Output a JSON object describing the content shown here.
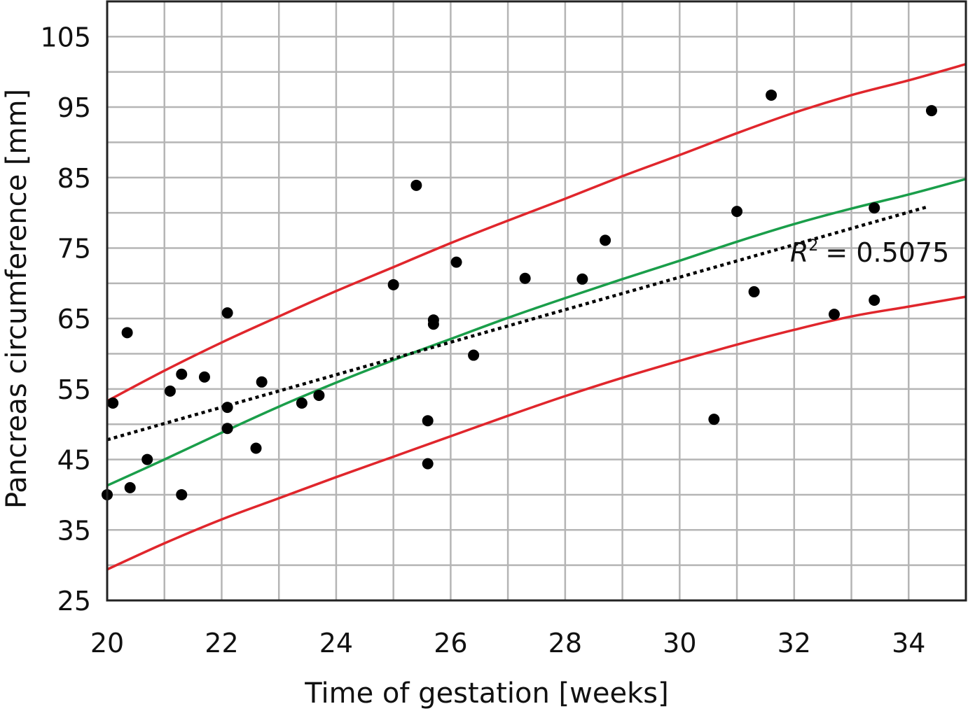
{
  "chart_data": {
    "type": "scatter",
    "xlabel": "Time of gestation [weeks]",
    "ylabel": "Pancreas circumference [mm]",
    "xlim": [
      20,
      35
    ],
    "ylim": [
      25,
      110
    ],
    "x_ticks": [
      20,
      22,
      24,
      26,
      28,
      30,
      32,
      34
    ],
    "y_ticks": [
      25,
      35,
      45,
      55,
      65,
      75,
      85,
      95,
      105
    ],
    "x_grid_step": 1,
    "y_grid_step": 5,
    "grid": true,
    "annotation": {
      "r_label": "R",
      "r_superscript": "2",
      "r_value_text": "= 0.5075",
      "position": "right"
    },
    "colors": {
      "points": "#000000",
      "mean_curve": "#1a9e4a",
      "bound_curves": "#e0262c",
      "trendline": "#000000",
      "grid": "#b5b5b5"
    },
    "points": [
      {
        "x": 20.0,
        "y": 40.0
      },
      {
        "x": 20.1,
        "y": 53.0
      },
      {
        "x": 20.35,
        "y": 63.0
      },
      {
        "x": 20.4,
        "y": 41.0
      },
      {
        "x": 20.7,
        "y": 45.0
      },
      {
        "x": 21.1,
        "y": 54.7
      },
      {
        "x": 21.3,
        "y": 57.1
      },
      {
        "x": 21.3,
        "y": 40.0
      },
      {
        "x": 21.7,
        "y": 56.7
      },
      {
        "x": 22.1,
        "y": 65.8
      },
      {
        "x": 22.1,
        "y": 52.4
      },
      {
        "x": 22.1,
        "y": 49.4
      },
      {
        "x": 22.6,
        "y": 46.6
      },
      {
        "x": 22.7,
        "y": 56.0
      },
      {
        "x": 23.4,
        "y": 53.0
      },
      {
        "x": 23.7,
        "y": 54.1
      },
      {
        "x": 25.0,
        "y": 69.8
      },
      {
        "x": 25.4,
        "y": 83.9
      },
      {
        "x": 25.6,
        "y": 50.5
      },
      {
        "x": 25.6,
        "y": 44.4
      },
      {
        "x": 25.7,
        "y": 64.8
      },
      {
        "x": 25.7,
        "y": 64.2
      },
      {
        "x": 26.1,
        "y": 73.0
      },
      {
        "x": 26.4,
        "y": 59.8
      },
      {
        "x": 27.3,
        "y": 70.7
      },
      {
        "x": 28.3,
        "y": 70.6
      },
      {
        "x": 28.7,
        "y": 76.1
      },
      {
        "x": 30.6,
        "y": 50.7
      },
      {
        "x": 31.0,
        "y": 80.2
      },
      {
        "x": 31.3,
        "y": 68.8
      },
      {
        "x": 31.6,
        "y": 96.7
      },
      {
        "x": 32.7,
        "y": 65.6
      },
      {
        "x": 33.4,
        "y": 67.6
      },
      {
        "x": 33.4,
        "y": 80.7
      },
      {
        "x": 34.4,
        "y": 94.5
      }
    ],
    "series": [
      {
        "kind": "mean",
        "x": [
          20,
          21,
          22,
          23,
          24,
          25,
          26,
          27,
          28,
          29,
          30,
          31,
          32,
          33,
          34,
          35
        ],
        "values": [
          41.3,
          45.0,
          48.8,
          52.5,
          55.9,
          59.1,
          62.1,
          65.1,
          67.9,
          70.6,
          73.2,
          75.9,
          78.4,
          80.6,
          82.6,
          84.8
        ]
      },
      {
        "kind": "upper",
        "x": [
          20,
          21,
          22,
          23,
          24,
          25,
          26,
          27,
          28,
          29,
          30,
          31,
          32,
          33,
          34,
          35
        ],
        "values": [
          53.3,
          57.6,
          61.6,
          65.3,
          68.9,
          72.3,
          75.7,
          78.9,
          82.0,
          85.2,
          88.2,
          91.3,
          94.2,
          96.7,
          98.8,
          101.1
        ]
      },
      {
        "kind": "lower",
        "x": [
          20,
          21,
          22,
          23,
          24,
          25,
          26,
          27,
          28,
          29,
          30,
          31,
          32,
          33,
          34,
          35
        ],
        "values": [
          29.4,
          33.1,
          36.5,
          39.5,
          42.5,
          45.4,
          48.3,
          51.2,
          54.0,
          56.6,
          59.0,
          61.3,
          63.4,
          65.3,
          66.7,
          68.1
        ]
      },
      {
        "kind": "trendline",
        "x": [
          20,
          34.35
        ],
        "values": [
          47.8,
          80.9
        ]
      }
    ]
  }
}
